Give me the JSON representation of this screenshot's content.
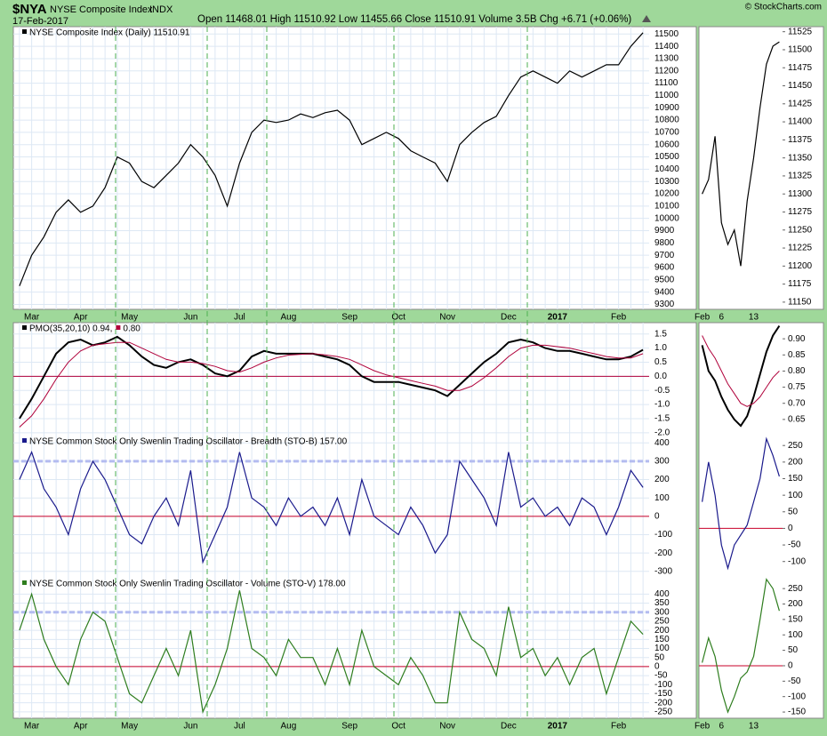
{
  "header": {
    "symbol": "$NYA",
    "name": "NYSE Composite Index",
    "exchange": "INDX",
    "date": "17-Feb-2017",
    "quote": "Open 11468.01  High 11510.92  Low 11455.66  Close 11510.91  Volume 3.5B  Chg +6.71 (+0.06%)",
    "copyright": "© StockCharts.com"
  },
  "chart_data": [
    {
      "type": "line",
      "panel": "main",
      "grid": true,
      "xlabels": true,
      "legend": true,
      "categories": [
        null,
        "Mar",
        null,
        null,
        null,
        "Apr",
        null,
        null,
        null,
        "May",
        null,
        null,
        null,
        null,
        "Jun",
        null,
        null,
        null,
        "Jul",
        null,
        null,
        null,
        "Aug",
        null,
        null,
        null,
        null,
        "Sep",
        null,
        null,
        null,
        "Oct",
        null,
        null,
        null,
        "Nov",
        null,
        null,
        null,
        null,
        "Dec",
        null,
        null,
        null,
        "2017",
        null,
        null,
        null,
        null,
        "Feb",
        null,
        null
      ],
      "series": [
        {
          "name": "NYSE Composite Index (Daily) 11510.91",
          "color": "#000000",
          "values": [
            9450,
            9700,
            9850,
            10050,
            10150,
            10050,
            10100,
            10250,
            10500,
            10450,
            10300,
            10250,
            10350,
            10450,
            10600,
            10500,
            10350,
            10100,
            10450,
            10700,
            10800,
            10780,
            10800,
            10850,
            10820,
            10860,
            10880,
            10800,
            10600,
            10650,
            10700,
            10650,
            10550,
            10500,
            10450,
            10300,
            10600,
            10700,
            10780,
            10830,
            11000,
            11150,
            11200,
            11150,
            11100,
            11200,
            11150,
            11200,
            11250,
            11250,
            11400,
            11510.91
          ]
        }
      ],
      "ylim": [
        9260,
        11560
      ],
      "yticks": [
        9300,
        9400,
        9500,
        9600,
        9700,
        9800,
        9900,
        10000,
        10100,
        10200,
        10300,
        10400,
        10500,
        10600,
        10700,
        10800,
        10900,
        11000,
        11100,
        11200,
        11300,
        11400,
        11500
      ]
    },
    {
      "type": "line",
      "panel": "main",
      "grid": true,
      "xlabels": false,
      "legend": true,
      "categories": [
        null,
        "Mar",
        null,
        null,
        null,
        "Apr",
        null,
        null,
        null,
        "May",
        null,
        null,
        null,
        null,
        "Jun",
        null,
        null,
        null,
        "Jul",
        null,
        null,
        null,
        "Aug",
        null,
        null,
        null,
        null,
        "Sep",
        null,
        null,
        null,
        "Oct",
        null,
        null,
        null,
        "Nov",
        null,
        null,
        null,
        null,
        "Dec",
        null,
        null,
        null,
        "2017",
        null,
        null,
        null,
        null,
        "Feb",
        null,
        null
      ],
      "series": [
        {
          "name": "PMO(35,20,10) 0.94,",
          "color": "#000000",
          "width": 2,
          "values": [
            -1.5,
            -0.8,
            0,
            0.8,
            1.2,
            1.3,
            1.1,
            1.2,
            1.4,
            1.1,
            0.7,
            0.4,
            0.3,
            0.5,
            0.6,
            0.4,
            0.1,
            0,
            0.2,
            0.7,
            0.9,
            0.8,
            0.8,
            0.8,
            0.8,
            0.7,
            0.6,
            0.4,
            0,
            -0.2,
            -0.2,
            -0.2,
            -0.3,
            -0.4,
            -0.5,
            -0.7,
            -0.3,
            0.1,
            0.5,
            0.8,
            1.2,
            1.3,
            1.2,
            1,
            0.9,
            0.9,
            0.8,
            0.7,
            0.6,
            0.6,
            0.7,
            0.94
          ]
        },
        {
          "name": "0.80",
          "color": "#b0003a",
          "width": 1,
          "values": [
            -1.8,
            -1.4,
            -0.8,
            -0.1,
            0.5,
            0.9,
            1.1,
            1.15,
            1.2,
            1.2,
            1,
            0.8,
            0.6,
            0.5,
            0.5,
            0.45,
            0.35,
            0.2,
            0.15,
            0.3,
            0.5,
            0.65,
            0.75,
            0.78,
            0.8,
            0.76,
            0.7,
            0.6,
            0.4,
            0.2,
            0.05,
            -0.05,
            -0.15,
            -0.25,
            -0.35,
            -0.5,
            -0.5,
            -0.35,
            -0.05,
            0.3,
            0.7,
            1,
            1.1,
            1.1,
            1.05,
            1,
            0.9,
            0.8,
            0.7,
            0.65,
            0.65,
            0.8
          ]
        }
      ],
      "ylim": [
        -2.1,
        1.9
      ],
      "yticks": [
        {
          "value": -2,
          "label": "-2.0"
        },
        {
          "value": -1.5,
          "label": "-1.5"
        },
        {
          "value": -1,
          "label": "-1.0"
        },
        {
          "value": -0.5,
          "label": "-0.5"
        },
        {
          "value": 0,
          "label": "0.0"
        },
        {
          "value": 0.5,
          "label": "0.5"
        },
        {
          "value": 1,
          "label": "1.0"
        },
        {
          "value": 1.5,
          "label": "1.5"
        }
      ],
      "hlines": [
        {
          "value": 0,
          "color": "#b0003a",
          "dash": false
        }
      ]
    },
    {
      "type": "line",
      "panel": "main",
      "grid": true,
      "xlabels": false,
      "legend": true,
      "categories": [
        null,
        "Mar",
        null,
        null,
        null,
        "Apr",
        null,
        null,
        null,
        "May",
        null,
        null,
        null,
        null,
        "Jun",
        null,
        null,
        null,
        "Jul",
        null,
        null,
        null,
        "Aug",
        null,
        null,
        null,
        null,
        "Sep",
        null,
        null,
        null,
        "Oct",
        null,
        null,
        null,
        "Nov",
        null,
        null,
        null,
        null,
        "Dec",
        null,
        null,
        null,
        "2017",
        null,
        null,
        null,
        null,
        "Feb",
        null,
        null
      ],
      "series": [
        {
          "name": "NYSE Common Stock Only Swenlin Trading Oscillator - Breadth (STO-B) 157.00",
          "color": "#1a1a8c",
          "values": [
            200,
            350,
            150,
            50,
            -100,
            150,
            300,
            200,
            50,
            -100,
            -150,
            0,
            100,
            -50,
            250,
            -250,
            -100,
            50,
            350,
            100,
            50,
            -50,
            100,
            0,
            50,
            -50,
            100,
            -100,
            200,
            0,
            -50,
            -100,
            50,
            -50,
            -200,
            -100,
            300,
            200,
            100,
            -50,
            350,
            50,
            100,
            0,
            50,
            -50,
            100,
            50,
            -100,
            50,
            250,
            157
          ]
        }
      ],
      "ylim": [
        -335,
        440
      ],
      "yticks": [
        -300,
        -200,
        -100,
        0,
        100,
        200,
        300,
        400
      ],
      "hlines": [
        {
          "value": 0,
          "color": "#c8002a",
          "dash": false
        },
        {
          "value": 300,
          "color": "#b4bcf0",
          "dash": true
        }
      ]
    },
    {
      "type": "line",
      "panel": "main",
      "grid": true,
      "xlabels": true,
      "legend": true,
      "categories": [
        null,
        "Mar",
        null,
        null,
        null,
        "Apr",
        null,
        null,
        null,
        "May",
        null,
        null,
        null,
        null,
        "Jun",
        null,
        null,
        null,
        "Jul",
        null,
        null,
        null,
        "Aug",
        null,
        null,
        null,
        null,
        "Sep",
        null,
        null,
        null,
        "Oct",
        null,
        null,
        null,
        "Nov",
        null,
        null,
        null,
        null,
        "Dec",
        null,
        null,
        null,
        "2017",
        null,
        null,
        null,
        null,
        "Feb",
        null,
        null
      ],
      "series": [
        {
          "name": "NYSE Common Stock Only Swenlin Trading Oscillator - Volume (STO-V) 178.00",
          "color": "#2e7d1e",
          "values": [
            200,
            400,
            150,
            0,
            -100,
            150,
            300,
            250,
            50,
            -150,
            -200,
            -50,
            100,
            -50,
            200,
            -250,
            -100,
            100,
            420,
            100,
            50,
            -50,
            150,
            50,
            50,
            -100,
            100,
            -100,
            200,
            0,
            -50,
            -100,
            50,
            -50,
            -200,
            -200,
            300,
            150,
            100,
            -50,
            330,
            50,
            100,
            -50,
            50,
            -100,
            50,
            100,
            -150,
            50,
            250,
            178
          ]
        }
      ],
      "ylim": [
        -285,
        490
      ],
      "yticks": [
        -250,
        -200,
        -150,
        -100,
        -50,
        0,
        50,
        100,
        150,
        200,
        250,
        300,
        350,
        400
      ],
      "hlines": [
        {
          "value": 0,
          "color": "#c8002a",
          "dash": false
        },
        {
          "value": 300,
          "color": "#b4bcf0",
          "dash": true
        }
      ]
    },
    {
      "type": "line",
      "panel": "zoom",
      "grid": false,
      "xlabels": true,
      "legend": false,
      "categories": [
        "Feb",
        null,
        null,
        "6",
        null,
        null,
        null,
        null,
        "13",
        null,
        null,
        null,
        null
      ],
      "series": [
        {
          "color": "#000000",
          "values": [
            11300,
            11320,
            11380,
            11260,
            11230,
            11250,
            11200,
            11290,
            11350,
            11420,
            11480,
            11505,
            11510.91
          ]
        }
      ],
      "ylim": [
        11140,
        11532
      ],
      "yticks": [
        11150,
        11175,
        11200,
        11225,
        11250,
        11275,
        11300,
        11325,
        11350,
        11375,
        11400,
        11425,
        11450,
        11475,
        11500,
        11525
      ]
    },
    {
      "type": "line",
      "panel": "zoom",
      "grid": false,
      "xlabels": false,
      "legend": false,
      "categories": [
        "Feb",
        null,
        null,
        "6",
        null,
        null,
        null,
        null,
        "13",
        null,
        null,
        null,
        null
      ],
      "series": [
        {
          "color": "#000000",
          "width": 2,
          "values": [
            0.88,
            0.8,
            0.77,
            0.72,
            0.68,
            0.65,
            0.63,
            0.66,
            0.72,
            0.79,
            0.86,
            0.91,
            0.94
          ]
        },
        {
          "color": "#b0003a",
          "width": 1,
          "values": [
            0.91,
            0.87,
            0.84,
            0.8,
            0.76,
            0.73,
            0.7,
            0.69,
            0.7,
            0.72,
            0.75,
            0.78,
            0.8
          ]
        }
      ],
      "ylim": [
        0.6,
        0.95
      ],
      "yticks": [
        {
          "value": 0.65,
          "label": "0.65"
        },
        {
          "value": 0.7,
          "label": "0.70"
        },
        {
          "value": 0.75,
          "label": "0.75"
        },
        {
          "value": 0.8,
          "label": "0.80"
        },
        {
          "value": 0.85,
          "label": "0.85"
        },
        {
          "value": 0.9,
          "label": "0.90"
        }
      ]
    },
    {
      "type": "line",
      "panel": "zoom",
      "grid": false,
      "xlabels": false,
      "legend": false,
      "categories": [
        "Feb",
        null,
        null,
        "6",
        null,
        null,
        null,
        null,
        "13",
        null,
        null,
        null,
        null
      ],
      "series": [
        {
          "color": "#1a1a8c",
          "values": [
            80,
            200,
            100,
            -50,
            -120,
            -50,
            -20,
            10,
            80,
            150,
            270,
            220,
            157
          ]
        }
      ],
      "ylim": [
        -149,
        280
      ],
      "yticks": [
        -100,
        -50,
        0,
        50,
        100,
        150,
        200,
        250
      ],
      "hlines": [
        {
          "value": 0,
          "color": "#c8002a",
          "dash": false
        }
      ]
    },
    {
      "type": "line",
      "panel": "zoom",
      "grid": false,
      "xlabels": true,
      "legend": false,
      "categories": [
        "Feb",
        null,
        null,
        "6",
        null,
        null,
        null,
        null,
        "13",
        null,
        null,
        null,
        null
      ],
      "series": [
        {
          "color": "#2e7d1e",
          "values": [
            10,
            90,
            30,
            -80,
            -150,
            -100,
            -40,
            -20,
            30,
            150,
            280,
            250,
            178
          ]
        }
      ],
      "ylim": [
        -170,
        285
      ],
      "yticks": [
        -150,
        -100,
        -50,
        0,
        50,
        100,
        150,
        200,
        250
      ],
      "hlines": [
        {
          "value": 0,
          "color": "#c8002a",
          "dash": false
        }
      ]
    }
  ]
}
